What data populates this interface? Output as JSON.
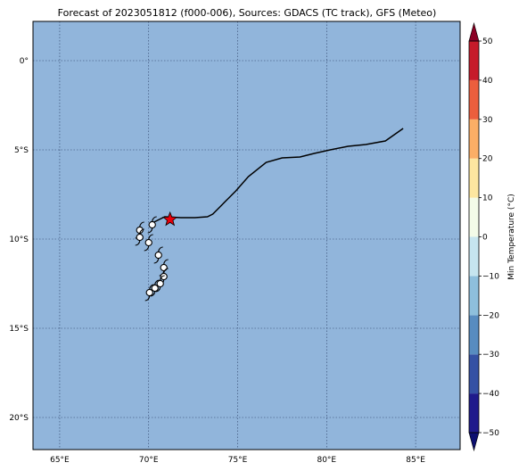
{
  "title": "Forecast of 2023051812 (f000-006), Sources: GDACS (TC track), GFS (Meteo)",
  "map": {
    "ocean_color": "#91b5db",
    "lon_range": [
      63.5,
      87.5
    ],
    "lat_range": [
      -21.8,
      2.2
    ],
    "x_ticks": [
      {
        "value": 65,
        "label": "65°E"
      },
      {
        "value": 70,
        "label": "70°E"
      },
      {
        "value": 75,
        "label": "75°E"
      },
      {
        "value": 80,
        "label": "80°E"
      },
      {
        "value": 85,
        "label": "85°E"
      }
    ],
    "y_ticks": [
      {
        "value": 0,
        "label": "0°"
      },
      {
        "value": -5,
        "label": "5°S"
      },
      {
        "value": -10,
        "label": "10°S"
      },
      {
        "value": -15,
        "label": "15°S"
      },
      {
        "value": -20,
        "label": "20°S"
      }
    ],
    "grid": "dotted",
    "track": [
      [
        84.3,
        -3.8
      ],
      [
        83.3,
        -4.5
      ],
      [
        82.2,
        -4.7
      ],
      [
        81.2,
        -4.8
      ],
      [
        80.2,
        -5.0
      ],
      [
        79.3,
        -5.2
      ],
      [
        78.5,
        -5.4
      ],
      [
        77.5,
        -5.45
      ],
      [
        76.6,
        -5.7
      ],
      [
        75.6,
        -6.5
      ],
      [
        74.9,
        -7.3
      ],
      [
        74.3,
        -7.9
      ],
      [
        74.0,
        -8.2
      ],
      [
        73.6,
        -8.6
      ],
      [
        73.3,
        -8.75
      ],
      [
        72.6,
        -8.8
      ],
      [
        71.8,
        -8.8
      ],
      [
        70.9,
        -8.75
      ],
      [
        70.2,
        -9.1
      ]
    ],
    "current_position": {
      "lon": 71.2,
      "lat": -8.9,
      "color": "#e8000b"
    },
    "tc_symbols": [
      {
        "lon": 70.2,
        "lat": -9.2
      },
      {
        "lon": 69.5,
        "lat": -9.5
      },
      {
        "lon": 69.5,
        "lat": -9.9
      },
      {
        "lon": 70.0,
        "lat": -10.2
      },
      {
        "lon": 70.55,
        "lat": -10.9
      },
      {
        "lon": 70.85,
        "lat": -11.6
      },
      {
        "lon": 70.85,
        "lat": -12.1
      },
      {
        "lon": 70.65,
        "lat": -12.5
      },
      {
        "lon": 70.35,
        "lat": -12.75
      },
      {
        "lon": 70.05,
        "lat": -13.0
      }
    ]
  },
  "colorbar": {
    "label": "Min Temperature (°C)",
    "vmin": -50,
    "vmax": 50,
    "levels": [
      {
        "from": -50,
        "to": -40,
        "color": "#1f1a8c"
      },
      {
        "from": -40,
        "to": -30,
        "color": "#3551a4"
      },
      {
        "from": -30,
        "to": -20,
        "color": "#588cc0"
      },
      {
        "from": -20,
        "to": -10,
        "color": "#8ebfdc"
      },
      {
        "from": -10,
        "to": 0,
        "color": "#c6e5ef"
      },
      {
        "from": 0,
        "to": 10,
        "color": "#f3fbe8"
      },
      {
        "from": 10,
        "to": 20,
        "color": "#fde6a0"
      },
      {
        "from": 20,
        "to": 30,
        "color": "#fbae66"
      },
      {
        "from": 30,
        "to": 40,
        "color": "#ec5e3d"
      },
      {
        "from": 40,
        "to": 50,
        "color": "#c61b2a"
      }
    ],
    "under_color": "#0d0f70",
    "over_color": "#8b0024",
    "ticks": [
      {
        "value": 50,
        "label": "50"
      },
      {
        "value": 40,
        "label": "40"
      },
      {
        "value": 30,
        "label": "30"
      },
      {
        "value": 20,
        "label": "20"
      },
      {
        "value": 10,
        "label": "10"
      },
      {
        "value": 0,
        "label": "0"
      },
      {
        "value": -10,
        "label": "−10"
      },
      {
        "value": -20,
        "label": "−20"
      },
      {
        "value": -30,
        "label": "−30"
      },
      {
        "value": -40,
        "label": "−40"
      },
      {
        "value": -50,
        "label": "−50"
      }
    ]
  }
}
